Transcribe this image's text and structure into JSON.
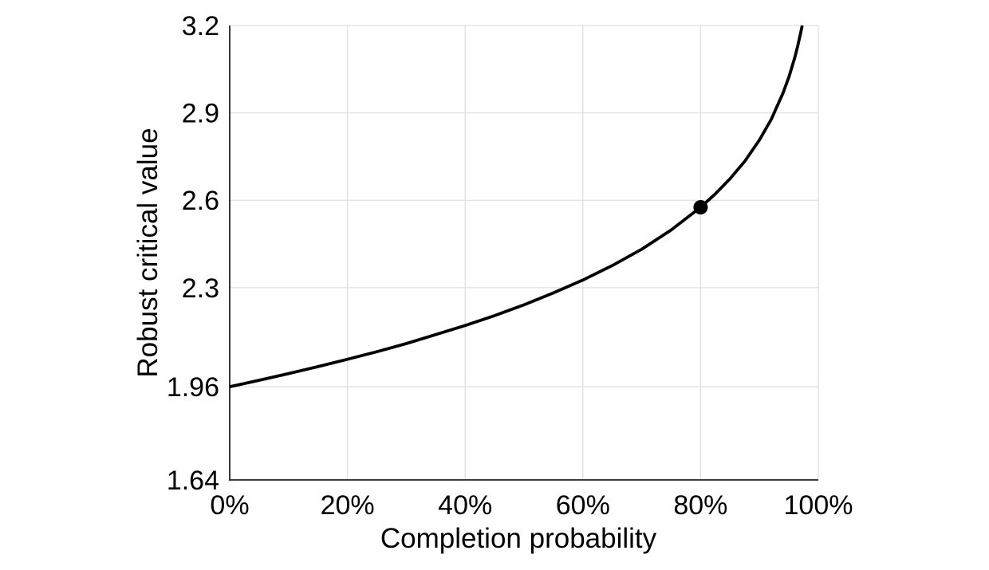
{
  "page": {
    "background": "#ffffff"
  },
  "chart_data": {
    "type": "line",
    "title": "",
    "xlabel": "Completion probability",
    "ylabel": "Robust critical value",
    "xlim": [
      0,
      1
    ],
    "ylim": [
      1.64,
      3.2
    ],
    "grid": true,
    "legend_position": "none",
    "xticks": [
      {
        "value": 0.0,
        "label": "0%"
      },
      {
        "value": 0.2,
        "label": "20%"
      },
      {
        "value": 0.4,
        "label": "40%"
      },
      {
        "value": 0.6,
        "label": "60%"
      },
      {
        "value": 0.8,
        "label": "80%"
      },
      {
        "value": 1.0,
        "label": "100%"
      }
    ],
    "yticks": [
      {
        "value": 1.64,
        "label": "1.64"
      },
      {
        "value": 1.96,
        "label": "1.96"
      },
      {
        "value": 2.3,
        "label": "2.3"
      },
      {
        "value": 2.6,
        "label": "2.6"
      },
      {
        "value": 2.9,
        "label": "2.9"
      },
      {
        "value": 3.2,
        "label": "3.2"
      }
    ],
    "series": [
      {
        "name": "robust-critical-value",
        "color": "#000000",
        "stroke_width": 3.8,
        "points": [
          [
            0.0,
            1.96
          ],
          [
            0.05,
            1.982
          ],
          [
            0.1,
            2.005
          ],
          [
            0.15,
            2.029
          ],
          [
            0.2,
            2.054
          ],
          [
            0.25,
            2.08
          ],
          [
            0.3,
            2.108
          ],
          [
            0.35,
            2.139
          ],
          [
            0.4,
            2.17
          ],
          [
            0.45,
            2.204
          ],
          [
            0.5,
            2.241
          ],
          [
            0.55,
            2.282
          ],
          [
            0.6,
            2.326
          ],
          [
            0.65,
            2.376
          ],
          [
            0.7,
            2.432
          ],
          [
            0.75,
            2.498
          ],
          [
            0.8,
            2.576
          ],
          [
            0.825,
            2.622
          ],
          [
            0.85,
            2.674
          ],
          [
            0.875,
            2.734
          ],
          [
            0.9,
            2.807
          ],
          [
            0.92,
            2.878
          ],
          [
            0.94,
            2.968
          ],
          [
            0.95,
            3.023
          ],
          [
            0.96,
            3.09
          ],
          [
            0.965,
            3.13
          ],
          [
            0.97,
            3.175
          ],
          [
            0.9726,
            3.2
          ]
        ]
      }
    ],
    "markers": [
      {
        "x": 0.8,
        "y": 2.576,
        "radius": 9,
        "color": "#000000"
      }
    ],
    "colors": {
      "background": "#ffffff",
      "grid": "#e0e0e0",
      "spine": "#222222",
      "curve": "#000000"
    }
  }
}
